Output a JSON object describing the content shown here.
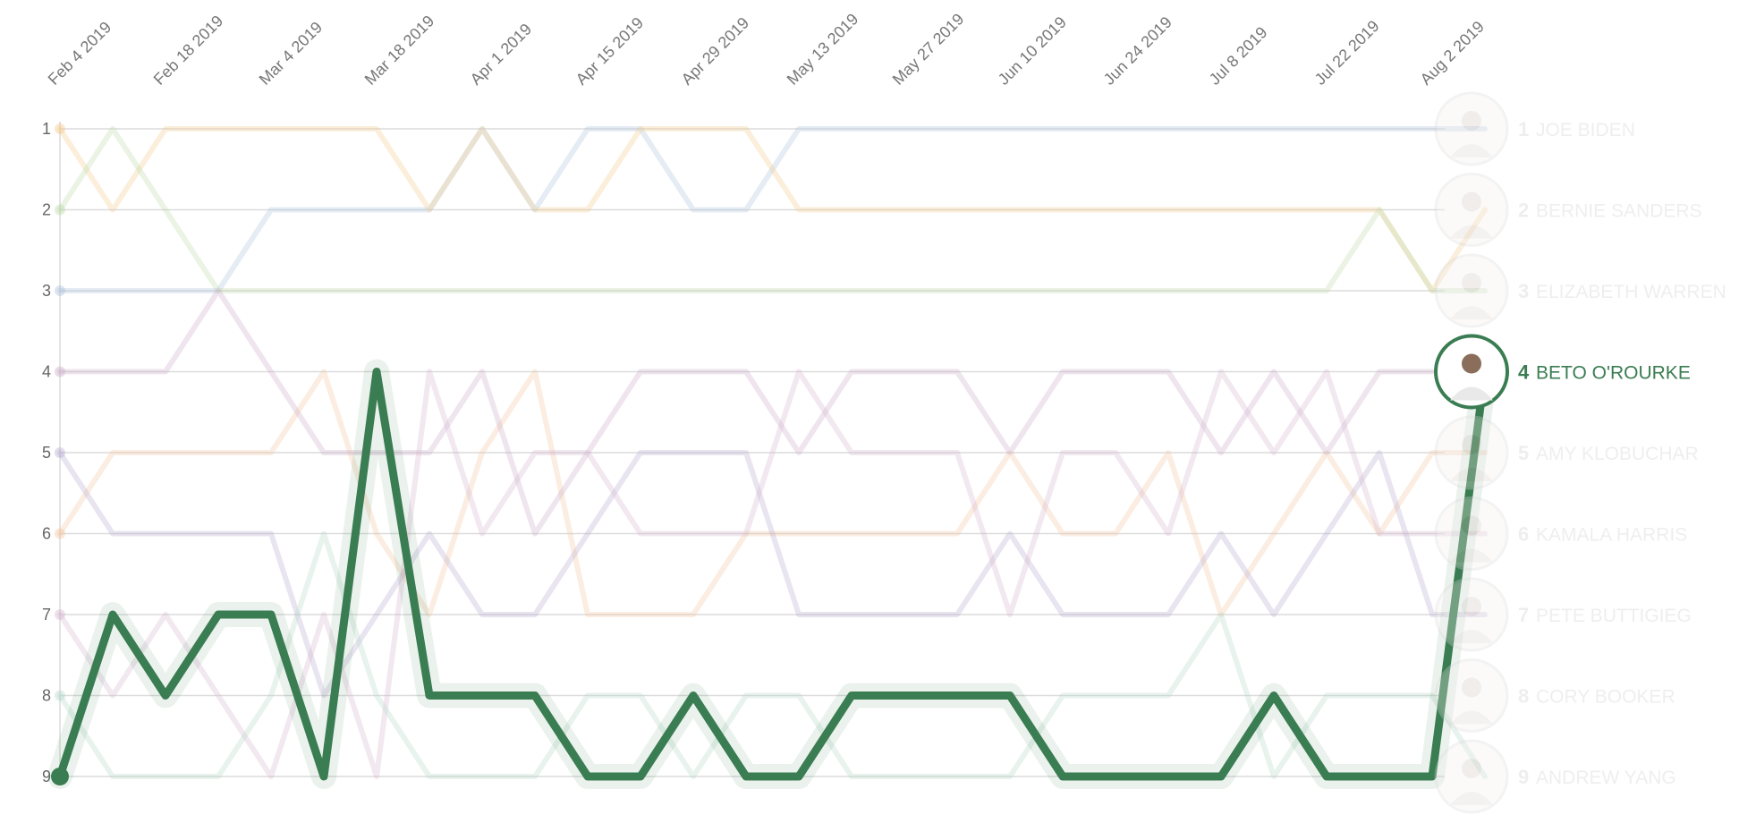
{
  "chart_data": {
    "type": "line",
    "title": "",
    "xlabel": "",
    "ylabel": "",
    "ylim": [
      1,
      9
    ],
    "y_inverted": true,
    "y_ticks": [
      "1",
      "2",
      "3",
      "4",
      "5",
      "6",
      "7",
      "8",
      "9"
    ],
    "x_tick_labels": [
      "Feb 4 2019",
      "Feb 18 2019",
      "Mar 4 2019",
      "Mar 18 2019",
      "Apr 1 2019",
      "Apr 15 2019",
      "Apr 29 2019",
      "May 13 2019",
      "May 27 2019",
      "Jun 10 2019",
      "Jun 24 2019",
      "Jul 8 2019",
      "Jul 22 2019",
      "Aug 2 2019"
    ],
    "x_points_per_week": 1,
    "highlighted_series": "BETO O'ROURKE",
    "highlight_color": "#3a7d52",
    "series": [
      {
        "name": "JOE BIDEN",
        "color": "#a9bfd9",
        "rank_label": "1",
        "values": [
          3,
          3,
          3,
          3,
          2,
          2,
          2,
          2,
          1,
          2,
          1,
          1,
          2,
          2,
          1,
          1,
          1,
          1,
          1,
          1,
          1,
          1,
          1,
          1,
          1,
          1,
          1,
          1
        ]
      },
      {
        "name": "BERNIE SANDERS",
        "color": "#f2c987",
        "rank_label": "2",
        "values": [
          1,
          2,
          1,
          1,
          1,
          1,
          1,
          2,
          1,
          2,
          2,
          1,
          1,
          1,
          2,
          2,
          2,
          2,
          2,
          2,
          2,
          2,
          2,
          2,
          2,
          2,
          3,
          2
        ]
      },
      {
        "name": "ELIZABETH WARREN",
        "color": "#b9d6a5",
        "rank_label": "3",
        "values": [
          2,
          1,
          2,
          3,
          3,
          3,
          3,
          3,
          3,
          3,
          3,
          3,
          3,
          3,
          3,
          3,
          3,
          3,
          3,
          3,
          3,
          3,
          3,
          3,
          3,
          2,
          3,
          3
        ]
      },
      {
        "name": "BETO O'ROURKE",
        "color": "#3a7d52",
        "rank_label": "4",
        "values": [
          9,
          7,
          8,
          7,
          7,
          9,
          4,
          8,
          8,
          8,
          9,
          9,
          8,
          9,
          9,
          8,
          8,
          8,
          8,
          9,
          9,
          9,
          9,
          8,
          9,
          9,
          9,
          4
        ]
      },
      {
        "name": "AMY KLOBUCHAR",
        "color": "#f2c29a",
        "rank_label": "5",
        "values": [
          6,
          5,
          5,
          5,
          5,
          4,
          6,
          7,
          5,
          4,
          7,
          7,
          7,
          6,
          6,
          6,
          6,
          6,
          5,
          6,
          6,
          5,
          7,
          6,
          5,
          6,
          5,
          5
        ]
      },
      {
        "name": "KAMALA HARRIS",
        "color": "#c9a9c6",
        "rank_label": "6",
        "values": [
          4,
          4,
          4,
          3,
          4,
          5,
          5,
          5,
          4,
          6,
          5,
          4,
          4,
          4,
          5,
          4,
          4,
          4,
          5,
          4,
          4,
          4,
          5,
          4,
          5,
          4,
          4,
          4
        ]
      },
      {
        "name": "PETE BUTTIGIEG",
        "color": "#b6a9cc",
        "rank_label": "7",
        "values": [
          5,
          6,
          6,
          6,
          6,
          8,
          7,
          6,
          7,
          7,
          6,
          5,
          5,
          5,
          7,
          7,
          7,
          7,
          6,
          7,
          7,
          7,
          6,
          7,
          6,
          5,
          7,
          7
        ]
      },
      {
        "name": "CORY BOOKER",
        "color": "#d4b3cd",
        "rank_label": "8",
        "values": [
          7,
          8,
          7,
          8,
          9,
          7,
          9,
          4,
          6,
          5,
          5,
          6,
          6,
          6,
          4,
          5,
          5,
          5,
          7,
          5,
          5,
          6,
          4,
          5,
          4,
          6,
          6,
          6
        ]
      },
      {
        "name": "ANDREW YANG",
        "color": "#b3d6c7",
        "rank_label": "9",
        "values": [
          8,
          9,
          9,
          9,
          8,
          6,
          8,
          9,
          9,
          9,
          8,
          8,
          9,
          8,
          8,
          9,
          9,
          9,
          9,
          8,
          8,
          8,
          7,
          9,
          8,
          8,
          8,
          9
        ]
      }
    ]
  }
}
